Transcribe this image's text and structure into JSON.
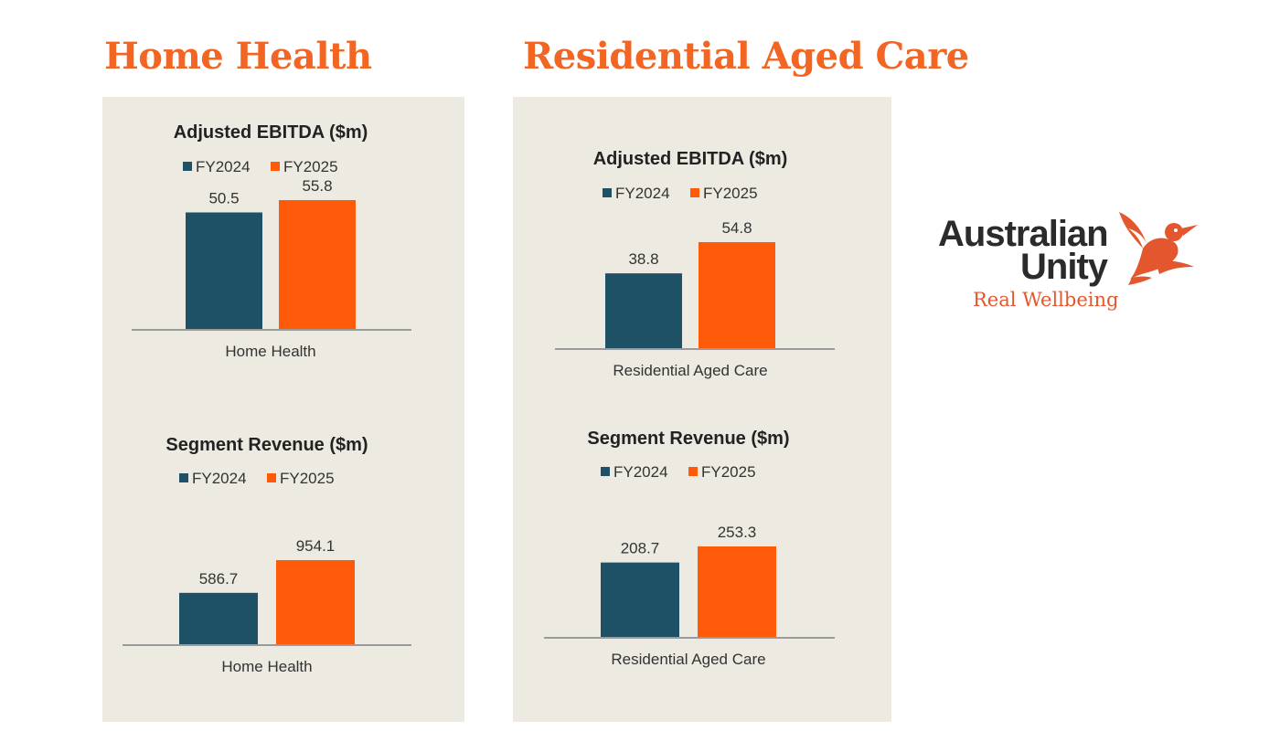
{
  "colors": {
    "title": "#f26522",
    "panel_bg": "#edeae1",
    "fy2024": "#1e5166",
    "fy2025": "#ff5a0a",
    "axis": "#9a9a9a",
    "logo_text": "#2b2b2b",
    "logo_accent": "#e4572e"
  },
  "sections": [
    {
      "title": "Home Health"
    },
    {
      "title": "Residential Aged Care"
    }
  ],
  "logo": {
    "line1": "Australian",
    "line2": "Unity",
    "tagline": "Real Wellbeing",
    "icon": "kookaburra-bird-icon"
  },
  "chart_data": [
    {
      "type": "bar",
      "section": "Home Health",
      "title": "Adjusted EBITDA ($m)",
      "categories": [
        "Home Health"
      ],
      "series": [
        {
          "name": "FY2024",
          "values": [
            50.5
          ]
        },
        {
          "name": "FY2025",
          "values": [
            55.8
          ]
        }
      ],
      "value_labels": [
        [
          "50.5"
        ],
        [
          "55.8"
        ]
      ],
      "ylim": [
        0,
        60
      ],
      "legend": "top-center",
      "grid": false
    },
    {
      "type": "bar",
      "section": "Home Health",
      "title": "Segment Revenue ($m)",
      "categories": [
        "Home Health"
      ],
      "series": [
        {
          "name": "FY2024",
          "values": [
            586.7
          ]
        },
        {
          "name": "FY2025",
          "values": [
            954.1
          ]
        }
      ],
      "value_labels": [
        [
          "586.7"
        ],
        [
          "954.1"
        ]
      ],
      "ylim": [
        0,
        1000
      ],
      "legend": "top-center",
      "grid": false
    },
    {
      "type": "bar",
      "section": "Residential Aged Care",
      "title": "Adjusted EBITDA ($m)",
      "categories": [
        "Residential Aged Care"
      ],
      "series": [
        {
          "name": "FY2024",
          "values": [
            38.8
          ]
        },
        {
          "name": "FY2025",
          "values": [
            54.8
          ]
        }
      ],
      "value_labels": [
        [
          "38.8"
        ],
        [
          "54.8"
        ]
      ],
      "ylim": [
        0,
        60
      ],
      "legend": "top-center",
      "grid": false
    },
    {
      "type": "bar",
      "section": "Residential Aged Care",
      "title": "Segment Revenue ($m)",
      "categories": [
        "Residential Aged Care"
      ],
      "series": [
        {
          "name": "FY2024",
          "values": [
            208.7
          ]
        },
        {
          "name": "FY2025",
          "values": [
            253.3
          ]
        }
      ],
      "value_labels": [
        [
          "208.7"
        ],
        [
          "253.3"
        ]
      ],
      "ylim": [
        0,
        300
      ],
      "legend": "top-center",
      "grid": false
    }
  ]
}
